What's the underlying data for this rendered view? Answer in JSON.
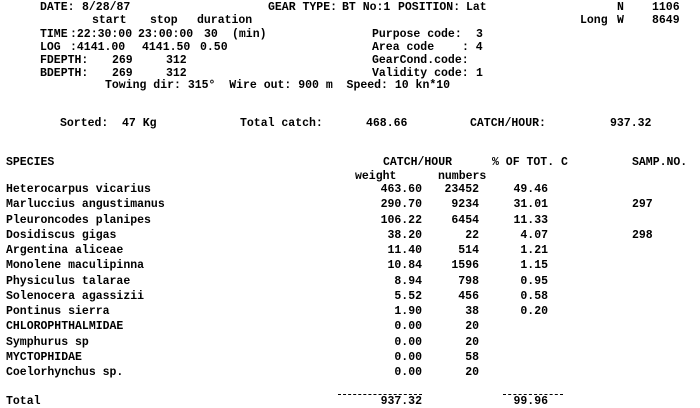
{
  "header": {
    "date_label": "DATE:",
    "date": "8/28/87",
    "gear_label": "GEAR TYPE:",
    "gear": "BT No:1",
    "position_label": "POSITION:",
    "lat_label": "Lat",
    "lat_hemi": "N",
    "lat": "1106",
    "long_label": "Long",
    "long_hemi": "W",
    "long": "8649",
    "col_start": "start",
    "col_stop": "stop",
    "col_duration": "duration",
    "time_label": "TIME",
    "time_start": ":22:30:00",
    "time_stop": "23:00:00",
    "time_duration": "30",
    "time_unit": "(min)",
    "log_label": "LOG",
    "log_start": ":4141.00",
    "log_stop": "4141.50",
    "log_duration": "0.50",
    "fdepth_label": "FDEPTH:",
    "fdepth_start": "269",
    "fdepth_stop": "312",
    "bdepth_label": "BDEPTH:",
    "bdepth_start": "269",
    "bdepth_stop": "312",
    "purpose_label": "Purpose code:",
    "purpose": "3",
    "area_label": "Area code",
    "area": ": 4",
    "gearcond_label": "GearCond.code:",
    "validity_label": "Validity code:",
    "validity": "1",
    "towing": "Towing dir: 315°  Wire out: 900 m  Speed: 10 kn*10"
  },
  "summary": {
    "sorted_label": "Sorted:",
    "sorted": "47 Kg",
    "total_label": "Total catch:",
    "total": "468.66",
    "cph_label": "CATCH/HOUR:",
    "cph": "937.32"
  },
  "table": {
    "headers": {
      "species": "SPECIES",
      "catch_hour": "CATCH/HOUR",
      "pct": "% OF TOT. C",
      "samp": "SAMP.NO.",
      "weight": "weight",
      "numbers": "numbers"
    },
    "rows": [
      {
        "species": "Heterocarpus vicarius",
        "weight": "463.60",
        "numbers": "23452",
        "pct": "49.46",
        "samp": ""
      },
      {
        "species": "Marluccius angustimanus",
        "weight": "290.70",
        "numbers": "9234",
        "pct": "31.01",
        "samp": "297"
      },
      {
        "species": "Pleuroncodes planipes",
        "weight": "106.22",
        "numbers": "6454",
        "pct": "11.33",
        "samp": ""
      },
      {
        "species": "Dosidiscus gigas",
        "weight": "38.20",
        "numbers": "22",
        "pct": "4.07",
        "samp": "298"
      },
      {
        "species": "Argentina aliceae",
        "weight": "11.40",
        "numbers": "514",
        "pct": "1.21",
        "samp": ""
      },
      {
        "species": "Monolene maculipinna",
        "weight": "10.84",
        "numbers": "1596",
        "pct": "1.15",
        "samp": ""
      },
      {
        "species": "Physiculus talarae",
        "weight": "8.94",
        "numbers": "798",
        "pct": "0.95",
        "samp": ""
      },
      {
        "species": "Solenocera agassizii",
        "weight": "5.52",
        "numbers": "456",
        "pct": "0.58",
        "samp": ""
      },
      {
        "species": "Pontinus sierra",
        "weight": "1.90",
        "numbers": "38",
        "pct": "0.20",
        "samp": ""
      },
      {
        "species": "CHLOROPHTHALMIDAE",
        "weight": "0.00",
        "numbers": "20",
        "pct": "",
        "samp": ""
      },
      {
        "species": "Symphurus sp",
        "weight": "0.00",
        "numbers": "20",
        "pct": "",
        "samp": ""
      },
      {
        "species": "MYCTOPHIDAE",
        "weight": "0.00",
        "numbers": "58",
        "pct": "",
        "samp": ""
      },
      {
        "species": "Coelorhynchus sp.",
        "weight": "0.00",
        "numbers": "20",
        "pct": "",
        "samp": ""
      }
    ],
    "total_label": "Total",
    "total_weight": "937.32",
    "total_pct": "99.96"
  }
}
